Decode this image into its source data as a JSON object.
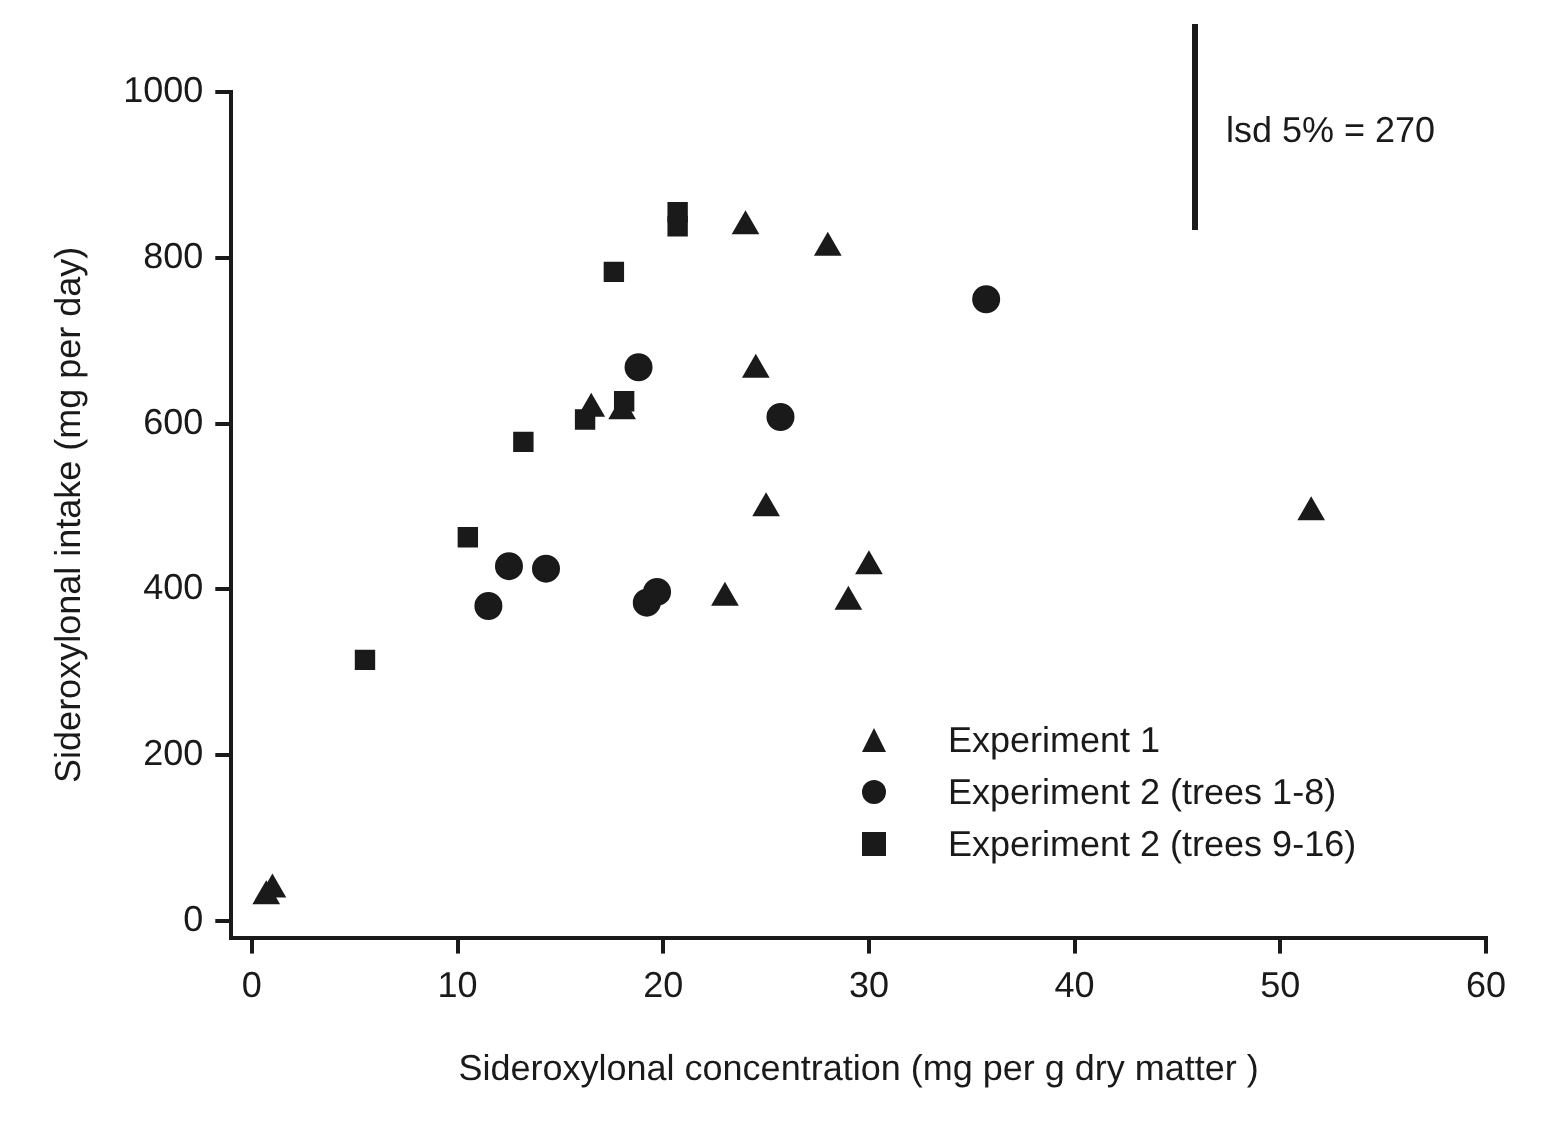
{
  "chart_data": {
    "type": "scatter",
    "xlabel": "Sideroxylonal concentration (mg per g dry matter )",
    "ylabel": "Sideroxylonal intake (mg per day)",
    "xlim": [
      -1,
      60
    ],
    "xticks": [
      0,
      10,
      20,
      30,
      40,
      50,
      60
    ],
    "ylim": [
      -20,
      1000
    ],
    "yticks": [
      0,
      200,
      400,
      600,
      800,
      1000
    ],
    "grid": false,
    "legend": "bottom right",
    "annotations": [
      "lsd 5% = 270"
    ],
    "series": [
      {
        "name": "Experiment 1",
        "color": "#1a1a1a",
        "marker": "triangle",
        "x": [
          0.7,
          1,
          16.5,
          18,
          23,
          24,
          24.5,
          25,
          28,
          29,
          30,
          51.5
        ],
        "values": [
          30,
          38,
          618,
          615,
          390,
          838,
          665,
          498,
          812,
          385,
          428,
          493
        ]
      },
      {
        "name": "Experiment 2 (trees 1-8)",
        "color": "#1a1a1a",
        "marker": "circle",
        "x": [
          11.5,
          12.5,
          14.3,
          18.8,
          19.2,
          19.7,
          25.7,
          35.7
        ],
        "values": [
          380,
          428,
          425,
          668,
          384,
          397,
          608,
          750
        ]
      },
      {
        "name": "Experiment 2 (trees 9-16)",
        "color": "#1a1a1a",
        "marker": "square",
        "x": [
          5.5,
          10.5,
          13.2,
          16.2,
          17.6,
          18.1,
          20.7,
          20.7
        ],
        "values": [
          315,
          463,
          578,
          605,
          783,
          627,
          838,
          855
        ]
      }
    ]
  }
}
